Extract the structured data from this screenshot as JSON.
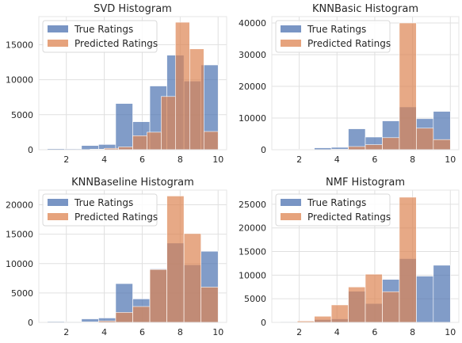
{
  "chart_data": [
    {
      "type": "bar",
      "title": "SVD Histogram",
      "xlim": [
        0.55,
        10.45
      ],
      "ylim": [
        0,
        19000
      ],
      "xticks": [
        2,
        4,
        6,
        8,
        10
      ],
      "yticks": [
        0,
        5000,
        10000,
        15000
      ],
      "legend_loc": "upper-left",
      "series": [
        {
          "name": "True Ratings",
          "color": "#4c72b0",
          "bins": [
            [
              1,
              1.9
            ],
            [
              1.9,
              2.8
            ],
            [
              2.8,
              3.7
            ],
            [
              3.7,
              4.6
            ],
            [
              4.6,
              5.5
            ],
            [
              5.5,
              6.4
            ],
            [
              6.4,
              7.3
            ],
            [
              7.3,
              8.2
            ],
            [
              8.2,
              9.1
            ],
            [
              9.1,
              10
            ]
          ],
          "values": [
            150,
            120,
            600,
            750,
            6600,
            4000,
            9100,
            13500,
            9800,
            12100
          ]
        },
        {
          "name": "Predicted Ratings",
          "color": "#dd8452",
          "bins": [
            [
              2.5,
              3.25
            ],
            [
              3.25,
              4
            ],
            [
              4,
              4.75
            ],
            [
              4.75,
              5.5
            ],
            [
              5.5,
              6.25
            ],
            [
              6.25,
              7
            ],
            [
              7,
              7.75
            ],
            [
              7.75,
              8.5
            ],
            [
              8.5,
              9.25
            ],
            [
              9.25,
              10
            ]
          ],
          "values": [
            30,
            80,
            200,
            400,
            2000,
            2500,
            7600,
            18200,
            14400,
            2600
          ]
        }
      ]
    },
    {
      "type": "bar",
      "title": "KNNBasic Histogram",
      "xlim": [
        0.55,
        10.45
      ],
      "ylim": [
        0,
        42000
      ],
      "xticks": [
        2,
        4,
        6,
        8,
        10
      ],
      "yticks": [
        0,
        10000,
        20000,
        30000,
        40000
      ],
      "legend_loc": "upper-left",
      "series": [
        {
          "name": "True Ratings",
          "color": "#4c72b0",
          "bins": [
            [
              1,
              1.9
            ],
            [
              1.9,
              2.8
            ],
            [
              2.8,
              3.7
            ],
            [
              3.7,
              4.6
            ],
            [
              4.6,
              5.5
            ],
            [
              5.5,
              6.4
            ],
            [
              6.4,
              7.3
            ],
            [
              7.3,
              8.2
            ],
            [
              8.2,
              9.1
            ],
            [
              9.1,
              10
            ]
          ],
          "values": [
            150,
            120,
            600,
            750,
            6600,
            4000,
            9100,
            13500,
            9800,
            12100
          ]
        },
        {
          "name": "Predicted Ratings",
          "color": "#dd8452",
          "bins": [
            [
              3.7,
              4.6
            ],
            [
              4.6,
              5.5
            ],
            [
              5.5,
              6.4
            ],
            [
              6.4,
              7.3
            ],
            [
              7.3,
              8.2
            ],
            [
              8.2,
              9.1
            ],
            [
              9.1,
              10
            ]
          ],
          "values": [
            150,
            1000,
            1600,
            3800,
            40000,
            6800,
            3200
          ]
        }
      ]
    },
    {
      "type": "bar",
      "title": "KNNBaseline Histogram",
      "xlim": [
        0.55,
        10.45
      ],
      "ylim": [
        0,
        22500
      ],
      "xticks": [
        2,
        4,
        6,
        8,
        10
      ],
      "yticks": [
        0,
        5000,
        10000,
        15000,
        20000
      ],
      "legend_loc": "upper-left",
      "series": [
        {
          "name": "True Ratings",
          "color": "#4c72b0",
          "bins": [
            [
              1,
              1.9
            ],
            [
              1.9,
              2.8
            ],
            [
              2.8,
              3.7
            ],
            [
              3.7,
              4.6
            ],
            [
              4.6,
              5.5
            ],
            [
              5.5,
              6.4
            ],
            [
              6.4,
              7.3
            ],
            [
              7.3,
              8.2
            ],
            [
              8.2,
              9.1
            ],
            [
              9.1,
              10
            ]
          ],
          "values": [
            150,
            120,
            600,
            750,
            6600,
            4000,
            9100,
            13500,
            9800,
            12100
          ]
        },
        {
          "name": "Predicted Ratings",
          "color": "#dd8452",
          "bins": [
            [
              2.8,
              3.7
            ],
            [
              3.7,
              4.6
            ],
            [
              4.6,
              5.5
            ],
            [
              5.5,
              6.4
            ],
            [
              6.4,
              7.3
            ],
            [
              7.3,
              8.2
            ],
            [
              8.2,
              9.1
            ],
            [
              9.1,
              10
            ]
          ],
          "values": [
            100,
            250,
            1700,
            2700,
            9000,
            21500,
            15100,
            6000
          ]
        }
      ]
    },
    {
      "type": "bar",
      "title": "NMF Histogram",
      "xlim": [
        0.55,
        10.45
      ],
      "ylim": [
        0,
        28000
      ],
      "xticks": [
        2,
        4,
        6,
        8,
        10
      ],
      "yticks": [
        0,
        5000,
        10000,
        15000,
        20000,
        25000
      ],
      "legend_loc": "upper-left",
      "series": [
        {
          "name": "True Ratings",
          "color": "#4c72b0",
          "bins": [
            [
              1,
              1.9
            ],
            [
              1.9,
              2.8
            ],
            [
              2.8,
              3.7
            ],
            [
              3.7,
              4.6
            ],
            [
              4.6,
              5.5
            ],
            [
              5.5,
              6.4
            ],
            [
              6.4,
              7.3
            ],
            [
              7.3,
              8.2
            ],
            [
              8.2,
              9.1
            ],
            [
              9.1,
              10
            ]
          ],
          "values": [
            150,
            120,
            600,
            750,
            6600,
            4000,
            9100,
            13500,
            9800,
            12100
          ]
        },
        {
          "name": "Predicted Ratings",
          "color": "#dd8452",
          "bins": [
            [
              1.9,
              2.8
            ],
            [
              2.8,
              3.7
            ],
            [
              3.7,
              4.6
            ],
            [
              4.6,
              5.5
            ],
            [
              5.5,
              6.4
            ],
            [
              6.4,
              7.3
            ],
            [
              7.3,
              8.2
            ]
          ],
          "values": [
            300,
            1300,
            3700,
            7500,
            10200,
            6500,
            26500
          ]
        }
      ]
    }
  ]
}
